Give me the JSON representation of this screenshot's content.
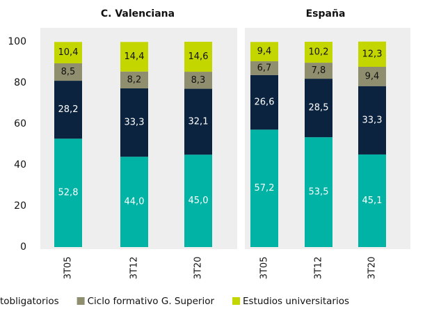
{
  "chart_data": [
    {
      "type": "bar",
      "stacked": true,
      "title": "C. Valenciana",
      "categories": [
        "3T05",
        "3T12",
        "3T20"
      ],
      "ylim": [
        0,
        100
      ],
      "yticks": [
        0,
        20,
        40,
        60,
        80,
        100
      ],
      "series": [
        {
          "color": "#00b3a4",
          "values": [
            52.8,
            44.0,
            45.0
          ],
          "value_labels": [
            "52,8",
            "44,0",
            "45,0"
          ]
        },
        {
          "name": "tobligatorios",
          "color": "#0c2340",
          "values": [
            28.2,
            33.3,
            32.1
          ],
          "value_labels": [
            "28,2",
            "33,3",
            "32,1"
          ]
        },
        {
          "name": "Ciclo formativo G. Superior",
          "color": "#8f8f6f",
          "values": [
            8.5,
            8.2,
            8.3
          ],
          "value_labels": [
            "8,5",
            "8,2",
            "8,3"
          ]
        },
        {
          "name": "Estudios universitarios",
          "color": "#c4d600",
          "values": [
            10.4,
            14.4,
            14.6
          ],
          "value_labels": [
            "10,4",
            "14,4",
            "14,6"
          ]
        }
      ]
    },
    {
      "type": "bar",
      "stacked": true,
      "title": "España",
      "categories": [
        "3T05",
        "3T12",
        "3T20"
      ],
      "ylim": [
        0,
        100
      ],
      "series": [
        {
          "color": "#00b3a4",
          "values": [
            57.2,
            53.5,
            45.1
          ],
          "value_labels": [
            "57,2",
            "53,5",
            "45,1"
          ]
        },
        {
          "color": "#0c2340",
          "values": [
            26.6,
            28.5,
            33.3
          ],
          "value_labels": [
            "26,6",
            "28,5",
            "33,3"
          ]
        },
        {
          "color": "#8f8f6f",
          "values": [
            6.7,
            7.8,
            9.4
          ],
          "value_labels": [
            "6,7",
            "7,8",
            "9,4"
          ]
        },
        {
          "color": "#c4d600",
          "values": [
            9.4,
            10.2,
            12.3
          ],
          "value_labels": [
            "9,4",
            "10,2",
            "12,3"
          ]
        }
      ]
    }
  ]
}
